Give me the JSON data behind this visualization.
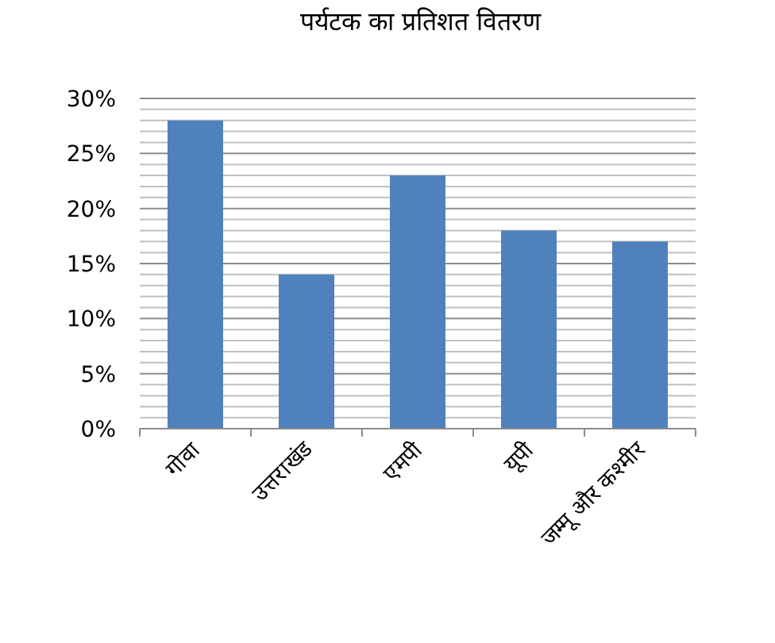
{
  "chart_data": {
    "type": "bar",
    "title": "पर्यटक का प्रतिशत वितरण",
    "categories": [
      "गोवा",
      "उत्तराखंड",
      "एमपी",
      "यूपी",
      "जम्मू और कश्मीर"
    ],
    "values": [
      28,
      14,
      23,
      18,
      17
    ],
    "color": "#4f81bd",
    "ylim": [
      0,
      30
    ],
    "yticks": [
      {
        "value": 0,
        "label": "0%"
      },
      {
        "value": 1,
        "label": null
      },
      {
        "value": 2,
        "label": null
      },
      {
        "value": 3,
        "label": null
      },
      {
        "value": 4,
        "label": null
      },
      {
        "value": 5,
        "label": "5%"
      },
      {
        "value": 6,
        "label": null
      },
      {
        "value": 7,
        "label": null
      },
      {
        "value": 8,
        "label": null
      },
      {
        "value": 9,
        "label": null
      },
      {
        "value": 10,
        "label": "10%"
      },
      {
        "value": 11,
        "label": null
      },
      {
        "value": 12,
        "label": null
      },
      {
        "value": 13,
        "label": null
      },
      {
        "value": 14,
        "label": null
      },
      {
        "value": 15,
        "label": "15%"
      },
      {
        "value": 16,
        "label": null
      },
      {
        "value": 17,
        "label": null
      },
      {
        "value": 18,
        "label": null
      },
      {
        "value": 19,
        "label": null
      },
      {
        "value": 20,
        "label": "20%"
      },
      {
        "value": 21,
        "label": null
      },
      {
        "value": 22,
        "label": null
      },
      {
        "value": 23,
        "label": null
      },
      {
        "value": 24,
        "label": null
      },
      {
        "value": 25,
        "label": "25%"
      },
      {
        "value": 26,
        "label": null
      },
      {
        "value": 27,
        "label": null
      },
      {
        "value": 28,
        "label": null
      },
      {
        "value": 29,
        "label": null
      },
      {
        "value": 30,
        "label": "30%"
      }
    ],
    "grid": "y"
  }
}
